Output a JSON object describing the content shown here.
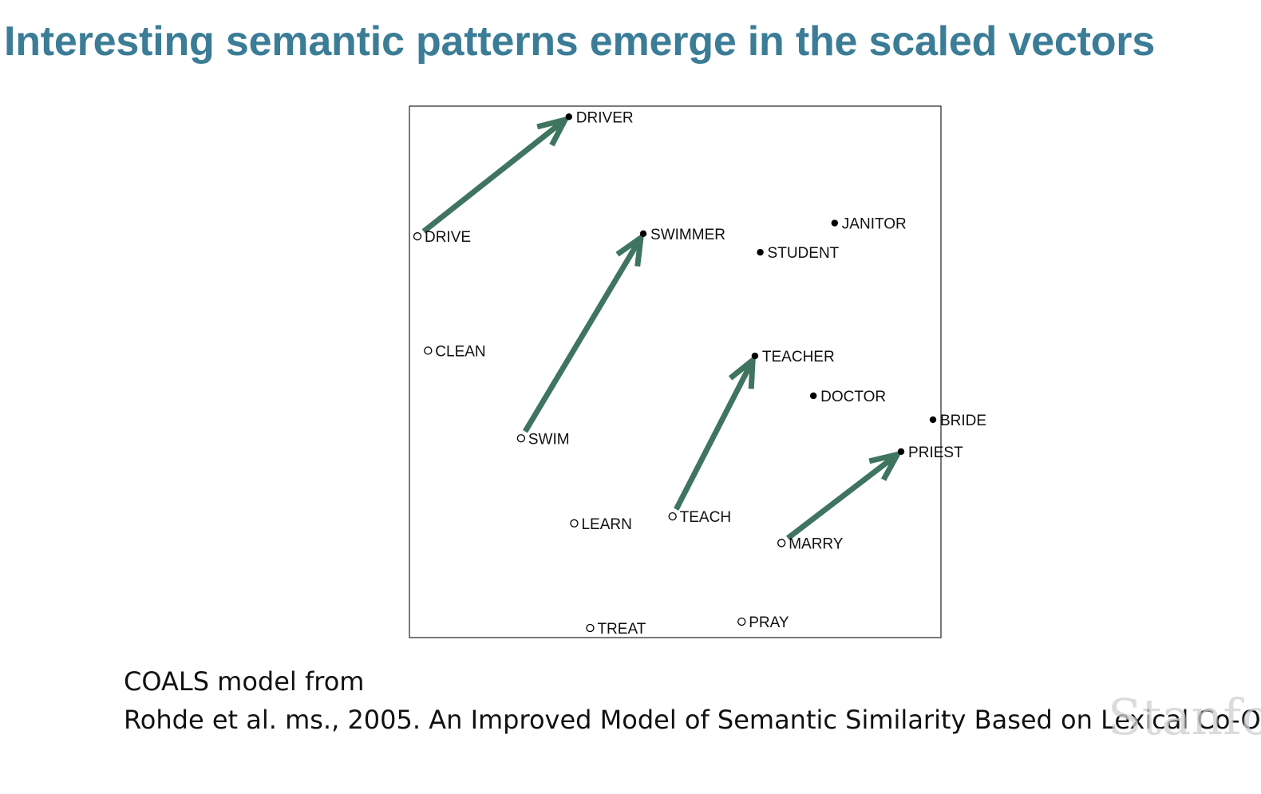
{
  "title": "Interesting semantic patterns emerge in the scaled vectors",
  "citation": {
    "line1": "COALS model from",
    "line2": "Rohde et al. ms., 2005. An Improved Model of Semantic Similarity Based on Lexical Co-O"
  },
  "watermark": "Stanfo",
  "colors": {
    "title": "#3b7c96",
    "arrow": "#3f7560",
    "point": "#000000"
  },
  "chart_data": {
    "type": "scatter",
    "title": "",
    "xlabel": "",
    "ylabel": "",
    "grid": false,
    "legend": "none",
    "points": [
      {
        "label": "DRIVER",
        "x": 0.3,
        "y": 0.98,
        "filled": true
      },
      {
        "label": "DRIVE",
        "x": 0.015,
        "y": 0.755,
        "filled": false
      },
      {
        "label": "SWIMMER",
        "x": 0.44,
        "y": 0.76,
        "filled": true
      },
      {
        "label": "JANITOR",
        "x": 0.8,
        "y": 0.78,
        "filled": true
      },
      {
        "label": "STUDENT",
        "x": 0.66,
        "y": 0.725,
        "filled": true
      },
      {
        "label": "CLEAN",
        "x": 0.035,
        "y": 0.54,
        "filled": false
      },
      {
        "label": "TEACHER",
        "x": 0.65,
        "y": 0.53,
        "filled": true
      },
      {
        "label": "DOCTOR",
        "x": 0.76,
        "y": 0.455,
        "filled": true
      },
      {
        "label": "BRIDE",
        "x": 0.985,
        "y": 0.41,
        "filled": true
      },
      {
        "label": "SWIM",
        "x": 0.21,
        "y": 0.375,
        "filled": false
      },
      {
        "label": "PRIEST",
        "x": 0.925,
        "y": 0.35,
        "filled": true
      },
      {
        "label": "LEARN",
        "x": 0.31,
        "y": 0.215,
        "filled": false
      },
      {
        "label": "TEACH",
        "x": 0.495,
        "y": 0.228,
        "filled": false
      },
      {
        "label": "MARRY",
        "x": 0.7,
        "y": 0.178,
        "filled": false
      },
      {
        "label": "PRAY",
        "x": 0.625,
        "y": 0.03,
        "filled": false
      },
      {
        "label": "TREAT",
        "x": 0.34,
        "y": 0.018,
        "filled": false
      }
    ],
    "arrows": [
      {
        "from": "DRIVE",
        "to": "DRIVER"
      },
      {
        "from": "SWIM",
        "to": "SWIMMER"
      },
      {
        "from": "TEACH",
        "to": "TEACHER"
      },
      {
        "from": "MARRY",
        "to": "PRIEST"
      }
    ]
  }
}
